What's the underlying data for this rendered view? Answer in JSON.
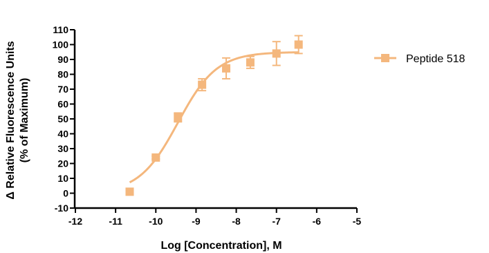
{
  "chart_data": {
    "type": "scatter",
    "title": "",
    "xlabel": "Log [Concentration], M",
    "ylabel_line1": "Δ Relative Fluorescence Units",
    "ylabel_line2": "(% of Maximum)",
    "xlim": [
      -12,
      -5
    ],
    "ylim": [
      -10,
      110
    ],
    "xticks": [
      -12,
      -11,
      -10,
      -9,
      -8,
      -7,
      -6,
      -5
    ],
    "yticks": [
      -10,
      0,
      10,
      20,
      30,
      40,
      50,
      60,
      70,
      80,
      90,
      100,
      110
    ],
    "grid": false,
    "legend_position": "top-right",
    "series": [
      {
        "name": "Peptide 518",
        "color": "#f4b77d",
        "marker": "square",
        "points": [
          {
            "x": -10.65,
            "y": 1,
            "err": 0
          },
          {
            "x": -10.0,
            "y": 24,
            "err": 1
          },
          {
            "x": -9.45,
            "y": 51,
            "err": 3
          },
          {
            "x": -8.85,
            "y": 73,
            "err": 4
          },
          {
            "x": -8.25,
            "y": 84,
            "err": 7
          },
          {
            "x": -7.65,
            "y": 88,
            "err": 4
          },
          {
            "x": -7.0,
            "y": 94,
            "err": 8
          },
          {
            "x": -6.45,
            "y": 100,
            "err": 6
          }
        ],
        "fit": {
          "model": "sigmoidal dose-response",
          "bottom": 0,
          "top": 95,
          "logEC50": -9.45,
          "hill": 0.9,
          "x_range": [
            -10.65,
            -6.45
          ]
        }
      }
    ]
  }
}
